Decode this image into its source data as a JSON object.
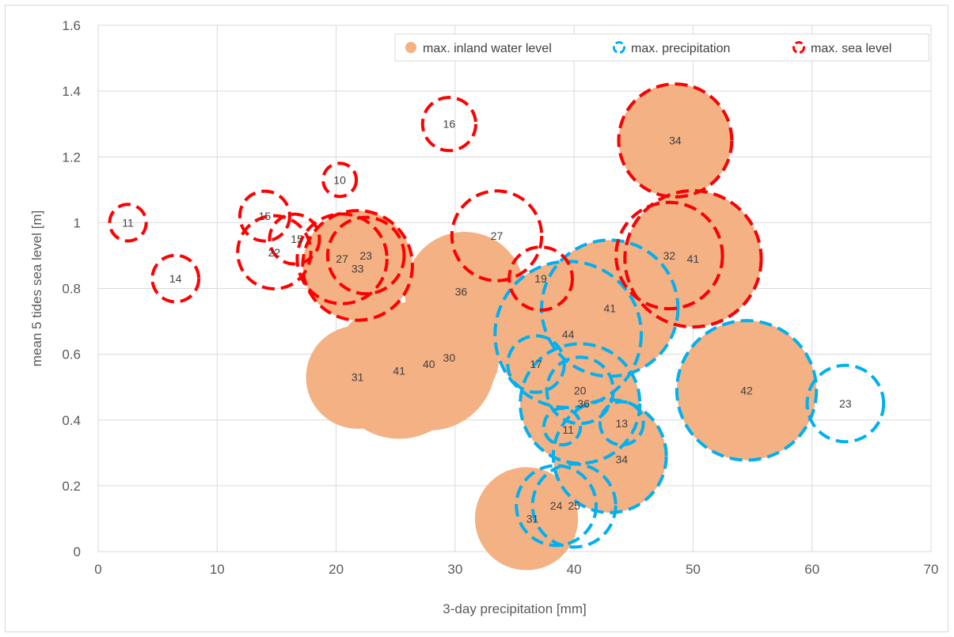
{
  "chart_data": {
    "type": "bubble",
    "xlabel": "3-day precipitation [mm]",
    "ylabel": "mean 5 tides sea level [m]",
    "xlim": [
      0,
      70
    ],
    "ylim": [
      0,
      1.6
    ],
    "xticks": [
      0,
      10,
      20,
      30,
      40,
      50,
      60,
      70
    ],
    "yticks": [
      0,
      0.2,
      0.4,
      0.6,
      0.8,
      1,
      1.2,
      1.4,
      1.6
    ],
    "ytick_labels": [
      "0",
      "0.2",
      "0.4",
      "0.6",
      "0.8",
      "1",
      "1.2",
      "1.4",
      "1.6"
    ],
    "grid": true,
    "legend_position": "top-right",
    "colors": {
      "inland": "#f4b183",
      "precip": "#00b0f0",
      "sea": "#ff0000"
    },
    "series": [
      {
        "name": "max. inland water level",
        "style": "filled",
        "points": [
          {
            "x": 21.8,
            "y": 0.53,
            "size": 31
          },
          {
            "x": 25.3,
            "y": 0.55,
            "size": 41
          },
          {
            "x": 27.8,
            "y": 0.57,
            "size": 40
          },
          {
            "x": 29.5,
            "y": 0.59,
            "size": 30
          },
          {
            "x": 30.8,
            "y": 0.79,
            "size": 36
          },
          {
            "x": 21.8,
            "y": 0.87,
            "size": 33
          },
          {
            "x": 36.0,
            "y": 0.1,
            "size": 31
          },
          {
            "x": 43.0,
            "y": 0.29,
            "size": 34
          },
          {
            "x": 40.5,
            "y": 0.45,
            "size": 36
          },
          {
            "x": 39.5,
            "y": 0.66,
            "size": 44
          },
          {
            "x": 43.0,
            "y": 0.74,
            "size": 41
          },
          {
            "x": 54.5,
            "y": 0.49,
            "size": 42
          },
          {
            "x": 48.5,
            "y": 1.25,
            "size": 34
          },
          {
            "x": 50.0,
            "y": 0.89,
            "size": 41
          }
        ]
      },
      {
        "name": "max. precipitation",
        "style": "dashed",
        "points": [
          {
            "x": 36.8,
            "y": 0.57,
            "size": 17
          },
          {
            "x": 40.5,
            "y": 0.49,
            "size": 20
          },
          {
            "x": 40.5,
            "y": 0.45,
            "size": 36
          },
          {
            "x": 39.0,
            "y": 0.38,
            "size": 11
          },
          {
            "x": 44.0,
            "y": 0.39,
            "size": 13
          },
          {
            "x": 43.0,
            "y": 0.29,
            "size": 34
          },
          {
            "x": 38.5,
            "y": 0.14,
            "size": 24
          },
          {
            "x": 40.0,
            "y": 0.14,
            "size": 25
          },
          {
            "x": 39.5,
            "y": 0.66,
            "size": 44
          },
          {
            "x": 43.0,
            "y": 0.74,
            "size": 41
          },
          {
            "x": 54.5,
            "y": 0.49,
            "size": 42
          },
          {
            "x": 62.8,
            "y": 0.45,
            "size": 23
          },
          {
            "x": 48.5,
            "y": 1.25,
            "size": 34
          },
          {
            "x": 50.0,
            "y": 0.89,
            "size": 41
          },
          {
            "x": 48.0,
            "y": 0.9,
            "size": 32
          }
        ]
      },
      {
        "name": "max. sea level",
        "style": "dashed",
        "points": [
          {
            "x": 2.5,
            "y": 1.0,
            "size": 11
          },
          {
            "x": 6.5,
            "y": 0.83,
            "size": 14
          },
          {
            "x": 14.0,
            "y": 1.02,
            "size": 15
          },
          {
            "x": 14.8,
            "y": 0.91,
            "size": 22
          },
          {
            "x": 16.5,
            "y": 0.95,
            "size": 15
          },
          {
            "x": 20.3,
            "y": 1.13,
            "size": 10
          },
          {
            "x": 20.5,
            "y": 0.89,
            "size": 27
          },
          {
            "x": 22.5,
            "y": 0.9,
            "size": 23
          },
          {
            "x": 21.8,
            "y": 0.87,
            "size": 33
          },
          {
            "x": 29.5,
            "y": 1.3,
            "size": 16
          },
          {
            "x": 33.5,
            "y": 0.96,
            "size": 27
          },
          {
            "x": 37.2,
            "y": 0.83,
            "size": 19
          },
          {
            "x": 48.5,
            "y": 1.25,
            "size": 34
          },
          {
            "x": 48.0,
            "y": 0.9,
            "size": 32
          },
          {
            "x": 50.0,
            "y": 0.89,
            "size": 41
          }
        ]
      }
    ],
    "labels": [
      {
        "x": 2.5,
        "y": 1.0,
        "text": "11"
      },
      {
        "x": 6.5,
        "y": 0.83,
        "text": "14"
      },
      {
        "x": 14.0,
        "y": 1.02,
        "text": "15"
      },
      {
        "x": 14.8,
        "y": 0.91,
        "text": "22"
      },
      {
        "x": 16.7,
        "y": 0.95,
        "text": "15"
      },
      {
        "x": 20.3,
        "y": 1.13,
        "text": "10"
      },
      {
        "x": 20.5,
        "y": 0.89,
        "text": "27"
      },
      {
        "x": 22.5,
        "y": 0.9,
        "text": "23"
      },
      {
        "x": 21.8,
        "y": 0.86,
        "text": "33"
      },
      {
        "x": 29.5,
        "y": 1.3,
        "text": "16"
      },
      {
        "x": 33.5,
        "y": 0.96,
        "text": "27"
      },
      {
        "x": 37.2,
        "y": 0.83,
        "text": "19"
      },
      {
        "x": 30.5,
        "y": 0.79,
        "text": "36"
      },
      {
        "x": 21.8,
        "y": 0.53,
        "text": "31"
      },
      {
        "x": 25.3,
        "y": 0.55,
        "text": "41"
      },
      {
        "x": 27.8,
        "y": 0.57,
        "text": "40"
      },
      {
        "x": 29.5,
        "y": 0.59,
        "text": "30"
      },
      {
        "x": 36.8,
        "y": 0.57,
        "text": "17"
      },
      {
        "x": 39.5,
        "y": 0.66,
        "text": "44"
      },
      {
        "x": 43.0,
        "y": 0.74,
        "text": "41"
      },
      {
        "x": 40.5,
        "y": 0.49,
        "text": "20"
      },
      {
        "x": 40.8,
        "y": 0.45,
        "text": "36"
      },
      {
        "x": 39.5,
        "y": 0.37,
        "text": "11"
      },
      {
        "x": 44.0,
        "y": 0.39,
        "text": "13"
      },
      {
        "x": 44.0,
        "y": 0.28,
        "text": "34"
      },
      {
        "x": 36.5,
        "y": 0.1,
        "text": "31"
      },
      {
        "x": 38.5,
        "y": 0.14,
        "text": "24"
      },
      {
        "x": 40.0,
        "y": 0.14,
        "text": "25"
      },
      {
        "x": 48.5,
        "y": 1.25,
        "text": "34"
      },
      {
        "x": 48.0,
        "y": 0.9,
        "text": "32"
      },
      {
        "x": 50.0,
        "y": 0.89,
        "text": "41"
      },
      {
        "x": 54.5,
        "y": 0.49,
        "text": "42"
      },
      {
        "x": 62.8,
        "y": 0.45,
        "text": "23"
      }
    ]
  }
}
